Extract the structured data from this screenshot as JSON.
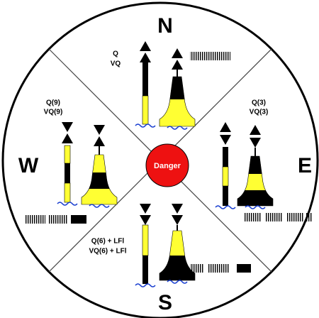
{
  "compass": {
    "north": "N",
    "east": "E",
    "south": "S",
    "west": "W"
  },
  "center_label": "Danger",
  "quadrants": {
    "north": {
      "quick": "Q",
      "very_quick": "VQ"
    },
    "east": {
      "quick": "Q(3)",
      "very_quick": "VQ(3)"
    },
    "south": {
      "quick": "Q(6) + LFl",
      "very_quick": "VQ(6) + LFl"
    },
    "west": {
      "quick": "Q(9)",
      "very_quick": "VQ(9)"
    }
  }
}
